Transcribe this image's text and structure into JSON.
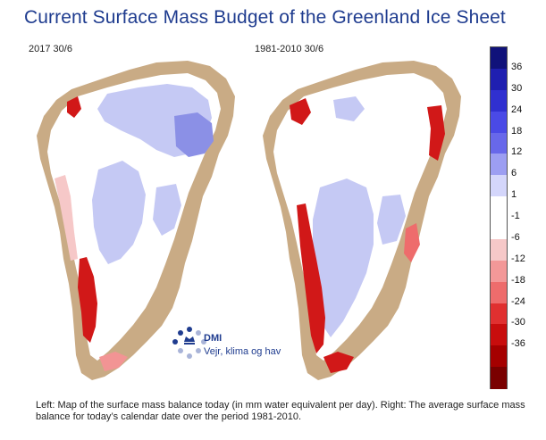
{
  "title": "Current Surface Mass Budget of the Greenland Ice Sheet",
  "maps": [
    {
      "label": "2017 30/6"
    },
    {
      "label": "1981-2010 30/6"
    }
  ],
  "colorbar": {
    "labels": [
      "36",
      "30",
      "24",
      "18",
      "12",
      "6",
      "1",
      "-1",
      "-6",
      "-12",
      "-18",
      "-24",
      "-30",
      "-36"
    ],
    "colors": [
      "#10127a",
      "#1f1fb0",
      "#3030d0",
      "#4a4ae6",
      "#6868ea",
      "#9c9ef2",
      "#d4d6fb",
      "#ffffff",
      "#ffffff",
      "#f6c8c8",
      "#f39898",
      "#ee6c6c",
      "#e03030",
      "#c80d0d",
      "#a50000",
      "#7a0000"
    ]
  },
  "logo": {
    "name": "DMI",
    "tagline": "Vejr, klima og hav",
    "colors": {
      "dots_dark": "#1f3c8f",
      "dots_light": "#a9b4d8"
    }
  },
  "caption": "Left: Map of the surface mass balance today (in mm water equivalent per day). Right: The average surface mass balance for today’s calendar date over the period 1981-2010.",
  "legend_colors": {
    "land": "#c9ab85",
    "accumulation": "#c5c9f4",
    "ablation": "#d11818"
  }
}
